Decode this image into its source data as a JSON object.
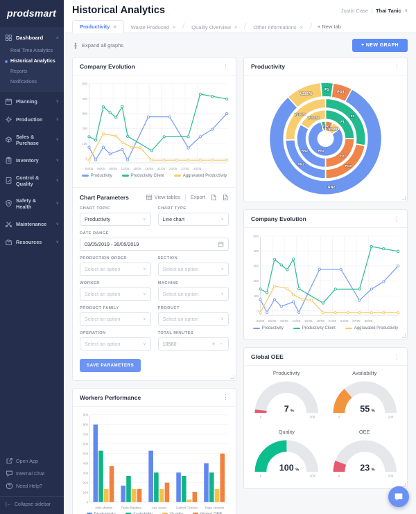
{
  "app": {
    "logo": "prodsmart",
    "title": "Historical Analytics",
    "user": {
      "company": "Justin Case",
      "name": "Thai Tanic"
    }
  },
  "icons": {
    "kebab_menu": "⋮",
    "chevron_down": "∨",
    "chevron_up": "∧",
    "close_tab": "×",
    "collapse_arrow": "|←",
    "stepper": "+ −"
  },
  "tabs": {
    "items": [
      {
        "label": "Productivity",
        "active": true
      },
      {
        "label": "Waste Produced",
        "active": false
      },
      {
        "label": "Quality Overview",
        "active": false
      },
      {
        "label": "Other Informations",
        "active": false
      }
    ],
    "new_tab": "+ New tab"
  },
  "toolbar": {
    "expand_all": "Expand all graphs",
    "new_graph": "+ NEW GRAPH"
  },
  "sidebar": {
    "dashboard": {
      "label": "Dashboard",
      "icon": "dashboard-icon",
      "items": [
        {
          "label": "Real Time Analytics",
          "active": false
        },
        {
          "label": "Historical Analytics",
          "active": true
        },
        {
          "label": "Reports",
          "active": false
        },
        {
          "label": "Notifications",
          "active": false
        }
      ]
    },
    "sections": [
      {
        "label": "Planning",
        "icon": "calendar-icon"
      },
      {
        "label": "Production",
        "icon": "production-icon"
      },
      {
        "label": "Sales & Purchase",
        "icon": "package-icon"
      },
      {
        "label": "Inventory",
        "icon": "inventory-icon"
      },
      {
        "label": "Control & Quality",
        "icon": "quality-icon"
      },
      {
        "label": "Safety & Health",
        "icon": "shield-icon"
      },
      {
        "label": "Maintenance",
        "icon": "tools-icon"
      },
      {
        "label": "Resources",
        "icon": "resources-icon"
      }
    ],
    "footer": [
      {
        "label": "Open App",
        "icon": "external-link-icon"
      },
      {
        "label": "Internal Chat",
        "icon": "chat-icon"
      },
      {
        "label": "Need Help?",
        "icon": "help-icon"
      }
    ],
    "collapse": "Collapse sidebar"
  },
  "cards": {
    "ce1": {
      "title": "Company Evolution"
    },
    "params": {
      "title": "Chart Parameters",
      "view_tables": "View tables",
      "export_label": "Export",
      "save": "SAVE PARAMETERS",
      "fields": [
        {
          "label": "CHART TOPIC",
          "type": "select",
          "value": "Productivity"
        },
        {
          "label": "CHART TYPE",
          "type": "select",
          "value": "Line chart"
        },
        {
          "label": "DATE RANGE",
          "type": "date",
          "value": "03/05/2019 - 30/05/2019",
          "full": true
        },
        {
          "label": "PRODUCTION ORDER",
          "type": "select",
          "placeholder": "Select an option"
        },
        {
          "label": "SECTION",
          "type": "select",
          "placeholder": "Select an option"
        },
        {
          "label": "WORKER",
          "type": "select",
          "placeholder": "Select an option"
        },
        {
          "label": "MACHINE",
          "type": "select",
          "placeholder": "Select an option"
        },
        {
          "label": "PRODUCT FAMILY",
          "type": "select",
          "placeholder": "Select an option"
        },
        {
          "label": "PRODUCT",
          "type": "select",
          "placeholder": "Select an option"
        },
        {
          "label": "OPERATION",
          "type": "select",
          "placeholder": "Select an option"
        },
        {
          "label": "TOTAL MINUTES",
          "type": "stepper",
          "value": "10560"
        }
      ]
    },
    "workers": {
      "title": "Workers Performance"
    },
    "sunburst": {
      "title": "Productivity"
    },
    "ce2": {
      "title": "Company Evolution"
    },
    "oee": {
      "title": "Global OEE"
    }
  },
  "chart_data": [
    {
      "id": "company_evolution",
      "type": "line",
      "title": "Company Evolution",
      "ylim": [
        -30,
        500
      ],
      "yticks": [
        0,
        100,
        200,
        300,
        400,
        500
      ],
      "grid": true,
      "legend_position": "bottom",
      "xticks": [
        {
          "pos": 0.0,
          "label": "03/05"
        },
        {
          "pos": 0.087,
          "label": "06/05"
        },
        {
          "pos": 0.174,
          "label": "09/05"
        },
        {
          "pos": 0.261,
          "label": "12/05"
        },
        {
          "pos": 0.349,
          "label": "15/05"
        },
        {
          "pos": 0.436,
          "label": "18/05"
        },
        {
          "pos": 0.523,
          "label": "21/05"
        },
        {
          "pos": 0.61,
          "label": "24/05"
        },
        {
          "pos": 0.697,
          "label": "27/05"
        },
        {
          "pos": 0.785,
          "label": "30/05"
        }
      ],
      "series": [
        {
          "name": "Productivity",
          "color": "#7b9ff2",
          "points": [
            [
              0,
              75
            ],
            [
              0.048,
              -10
            ],
            [
              0.103,
              75
            ],
            [
              0.152,
              30
            ],
            [
              0.24,
              60
            ],
            [
              0.28,
              -10
            ],
            [
              0.43,
              278
            ],
            [
              0.585,
              278
            ],
            [
              0.72,
              70
            ],
            [
              0.807,
              145
            ],
            [
              0.895,
              195
            ],
            [
              1,
              300
            ]
          ]
        },
        {
          "name": "Productivity Client",
          "color": "#35bb94",
          "points": [
            [
              0,
              145
            ],
            [
              0.048,
              122
            ],
            [
              0.103,
              345
            ],
            [
              0.152,
              307
            ],
            [
              0.195,
              275
            ],
            [
              0.24,
              347
            ],
            [
              0.28,
              148
            ],
            [
              0.455,
              52
            ],
            [
              0.545,
              145
            ],
            [
              0.72,
              145
            ],
            [
              0.807,
              430
            ],
            [
              0.895,
              415
            ],
            [
              1,
              398
            ]
          ]
        },
        {
          "name": "Aggravated Productivity",
          "color": "#f8cb6b",
          "points": [
            [
              0,
              -12
            ],
            [
              0.103,
              165
            ],
            [
              0.195,
              150
            ],
            [
              0.24,
              108
            ],
            [
              0.31,
              75
            ],
            [
              0.37,
              72
            ],
            [
              0.455,
              -12
            ],
            [
              0.545,
              -12
            ],
            [
              0.635,
              -12
            ],
            [
              0.72,
              -12
            ],
            [
              0.807,
              -12
            ],
            [
              0.895,
              -12
            ],
            [
              1,
              -12
            ]
          ]
        }
      ]
    },
    {
      "id": "productivity_sunburst",
      "type": "sunburst",
      "title": "Productivity",
      "palette": {
        "RN2": "#6d96f1",
        "P1": "#23ba8d",
        "PO3": "#f0854c",
        "V23076": "#f8cd70"
      },
      "rings": [
        {
          "r": [
            11,
            25
          ],
          "segments": [
            {
              "key": "P1",
              "a": [
                345,
                360
              ]
            },
            {
              "key": "PO3",
              "a": [
                0,
                25
              ]
            },
            {
              "key": "V23076",
              "a": [
                25,
                55
              ]
            },
            {
              "key": "RN2",
              "a": [
                55,
                345
              ]
            }
          ]
        },
        {
          "r": [
            27.5,
            41
          ],
          "segments": [
            {
              "key": "P1",
              "a": [
                0,
                90
              ]
            },
            {
              "key": "PO3",
              "a": [
                90,
                180
              ]
            },
            {
              "key": "RN2",
              "a": [
                180,
                300
              ]
            },
            {
              "key": "V23076",
              "a": [
                300,
                360
              ]
            }
          ]
        },
        {
          "r": [
            43.5,
            57
          ],
          "segments": [
            {
              "key": "P1",
              "a": [
                0,
                100
              ]
            },
            {
              "key": "PO3",
              "a": [
                100,
                180
              ]
            },
            {
              "key": "RN2",
              "a": [
                180,
                268
              ]
            },
            {
              "key": "V23076",
              "a": [
                268,
                360
              ]
            }
          ]
        },
        {
          "r": [
            59.5,
            80
          ],
          "segments": [
            {
              "key": "P1",
              "a": [
                355,
                8
              ]
            },
            {
              "key": "PO3",
              "a": [
                8,
                28
              ]
            },
            {
              "key": "RN2",
              "a": [
                28,
                318
              ]
            },
            {
              "key": "V23076",
              "a": [
                318,
                355
              ]
            }
          ]
        }
      ]
    },
    {
      "id": "global_oee",
      "type": "gauge",
      "title": "Global OEE",
      "gauges": [
        {
          "label": "Productivity",
          "value": 7,
          "unit": "%",
          "min": "0",
          "max": "200",
          "color": "#e55a70"
        },
        {
          "label": "Availability",
          "value": 55,
          "unit": "%",
          "min": "0",
          "max": "200",
          "color": "#f1943c"
        },
        {
          "label": "Quality",
          "value": 100,
          "unit": "%",
          "min": "0",
          "max": "200",
          "color": "#0cbe8d"
        },
        {
          "label": "OEE",
          "value": 23,
          "unit": "%",
          "min": "0",
          "max": "200",
          "color": "#e55a70"
        }
      ]
    },
    {
      "id": "workers_performance",
      "type": "bar",
      "title": "Workers Performance",
      "ylim": [
        0,
        900
      ],
      "ytick_step": 100,
      "grid": true,
      "legend_position": "bottom",
      "categories": [
        "João Martins",
        "Pedro Baptista",
        "Ana Jesus",
        "Gabriel Ferreira",
        "Tiago Antunes"
      ],
      "series": [
        {
          "name": "Productivity",
          "color": "#5f88f0",
          "values": [
            800,
            170,
            530,
            305,
            400
          ]
        },
        {
          "name": "Availability",
          "color": "#10b586",
          "values": [
            530,
            270,
            305,
            270,
            305
          ]
        },
        {
          "name": "Quality",
          "color": "#f6c14b",
          "values": [
            135,
            135,
            135,
            25,
            135
          ]
        },
        {
          "name": "Global OEE",
          "color": "#f0813f",
          "values": [
            370,
            135,
            200,
            105,
            500
          ]
        }
      ]
    }
  ],
  "colors": {
    "accent_blue": "#5b8cf4",
    "sidebar_bg": "#252f4d",
    "content_bg": "#f6f7f9",
    "gauge_track": "#e5e7ea"
  }
}
